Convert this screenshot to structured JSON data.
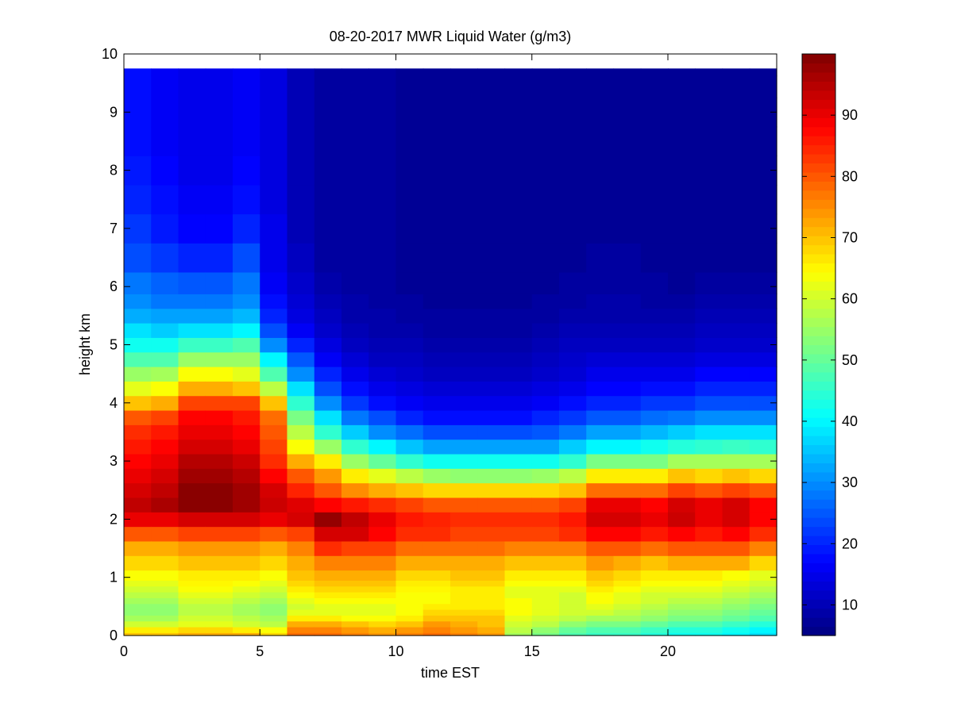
{
  "chart_data": {
    "type": "heatmap",
    "title": "08-20-2017 MWR Liquid Water (g/m3)",
    "xlabel": "time EST",
    "ylabel": "height km",
    "xlim": [
      0,
      24
    ],
    "ylim": [
      0,
      10
    ],
    "xticks": [
      0,
      5,
      10,
      15,
      20
    ],
    "yticks": [
      0,
      1,
      2,
      3,
      4,
      5,
      6,
      7,
      8,
      9,
      10
    ],
    "colorbar": {
      "colormap": "jet",
      "range": [
        5,
        100
      ],
      "ticks": [
        10,
        20,
        30,
        40,
        50,
        60,
        70,
        80,
        90
      ]
    },
    "time_step_hours": 1,
    "time_centers": [
      0,
      1,
      2,
      3,
      4,
      5,
      6,
      7,
      8,
      9,
      10,
      11,
      12,
      13,
      14,
      15,
      16,
      17,
      18,
      19,
      20,
      21,
      22,
      23
    ],
    "height_levels_km": [
      0,
      0.1,
      0.2,
      0.3,
      0.4,
      0.5,
      0.6,
      0.7,
      0.8,
      0.9,
      1.0,
      1.25,
      1.5,
      1.75,
      2.0,
      2.25,
      2.5,
      2.75,
      3.0,
      3.25,
      3.5,
      3.75,
      4.0,
      4.25,
      4.5,
      4.75,
      5.0,
      5.25,
      5.5,
      5.75,
      6.0,
      6.5,
      7.0,
      7.5,
      8.0,
      8.5,
      9.0,
      9.5,
      9.75
    ],
    "profiles": [
      [
        70,
        66,
        60,
        56,
        54,
        54,
        56,
        58,
        60,
        62,
        64,
        68,
        72,
        80,
        90,
        94,
        92,
        90,
        88,
        86,
        84,
        80,
        70,
        62,
        55,
        48,
        42,
        38,
        33,
        30,
        28,
        24,
        22,
        20,
        19,
        18,
        18,
        18,
        18
      ],
      [
        70,
        66,
        60,
        56,
        54,
        54,
        56,
        58,
        60,
        62,
        64,
        68,
        72,
        80,
        90,
        96,
        94,
        92,
        90,
        88,
        86,
        82,
        72,
        64,
        56,
        48,
        42,
        36,
        32,
        28,
        26,
        22,
        19,
        18,
        17,
        16,
        16,
        16,
        16
      ],
      [
        72,
        68,
        62,
        60,
        58,
        58,
        60,
        62,
        64,
        65,
        66,
        70,
        74,
        82,
        92,
        99,
        99,
        97,
        95,
        92,
        90,
        88,
        82,
        72,
        64,
        55,
        46,
        38,
        32,
        28,
        25,
        20,
        17,
        16,
        15,
        15,
        15,
        15,
        15
      ],
      [
        72,
        68,
        62,
        60,
        58,
        58,
        60,
        62,
        64,
        65,
        66,
        70,
        74,
        82,
        92,
        99,
        99,
        97,
        95,
        92,
        90,
        88,
        82,
        72,
        64,
        55,
        46,
        38,
        32,
        28,
        25,
        20,
        17,
        16,
        15,
        15,
        15,
        15,
        15
      ],
      [
        72,
        66,
        60,
        58,
        56,
        56,
        58,
        60,
        62,
        64,
        66,
        70,
        74,
        82,
        92,
        97,
        97,
        95,
        93,
        90,
        88,
        86,
        82,
        70,
        62,
        55,
        48,
        40,
        34,
        30,
        28,
        24,
        20,
        18,
        17,
        16,
        16,
        16,
        16
      ],
      [
        68,
        64,
        58,
        56,
        54,
        54,
        56,
        58,
        60,
        62,
        64,
        68,
        72,
        80,
        90,
        93,
        92,
        88,
        84,
        82,
        80,
        78,
        70,
        58,
        48,
        40,
        30,
        24,
        20,
        18,
        16,
        15,
        15,
        14,
        14,
        14,
        14,
        14,
        14
      ],
      [
        78,
        76,
        72,
        66,
        62,
        60,
        62,
        64,
        66,
        68,
        70,
        72,
        76,
        82,
        92,
        91,
        85,
        80,
        72,
        64,
        58,
        52,
        45,
        38,
        30,
        25,
        20,
        16,
        14,
        13,
        12,
        11,
        10,
        10,
        10,
        10,
        10,
        10,
        10
      ],
      [
        78,
        76,
        72,
        66,
        62,
        62,
        64,
        66,
        68,
        70,
        72,
        76,
        84,
        92,
        98,
        88,
        80,
        74,
        66,
        55,
        45,
        38,
        30,
        24,
        20,
        16,
        14,
        12,
        11,
        10,
        9,
        8,
        8,
        8,
        8,
        8,
        8,
        8,
        8
      ],
      [
        76,
        74,
        70,
        64,
        62,
        62,
        64,
        66,
        68,
        70,
        72,
        76,
        82,
        92,
        94,
        86,
        75,
        66,
        55,
        45,
        36,
        28,
        22,
        18,
        15,
        13,
        11,
        10,
        9,
        9,
        8,
        8,
        8,
        8,
        8,
        8,
        8,
        8,
        8
      ],
      [
        74,
        72,
        68,
        64,
        62,
        62,
        64,
        66,
        68,
        70,
        72,
        76,
        82,
        88,
        90,
        84,
        72,
        62,
        50,
        40,
        30,
        24,
        18,
        15,
        13,
        11,
        10,
        9,
        9,
        8,
        8,
        8,
        8,
        8,
        8,
        8,
        8,
        8,
        8
      ],
      [
        76,
        74,
        70,
        66,
        64,
        64,
        64,
        64,
        65,
        66,
        68,
        72,
        78,
        84,
        86,
        82,
        70,
        58,
        45,
        35,
        27,
        20,
        16,
        14,
        12,
        11,
        10,
        9,
        8,
        8,
        7,
        7,
        7,
        7,
        7,
        7,
        7,
        7,
        7
      ],
      [
        78,
        76,
        74,
        70,
        68,
        66,
        64,
        64,
        65,
        66,
        68,
        72,
        78,
        84,
        85,
        80,
        68,
        55,
        42,
        32,
        24,
        18,
        15,
        13,
        11,
        10,
        9,
        8,
        8,
        7,
        7,
        7,
        7,
        7,
        7,
        7,
        7,
        7,
        7
      ],
      [
        76,
        74,
        72,
        70,
        68,
        66,
        66,
        66,
        66,
        68,
        70,
        72,
        78,
        82,
        84,
        80,
        68,
        54,
        42,
        32,
        24,
        18,
        15,
        13,
        11,
        10,
        9,
        8,
        8,
        7,
        7,
        7,
        7,
        7,
        7,
        7,
        7,
        7,
        7
      ],
      [
        74,
        72,
        70,
        70,
        68,
        66,
        66,
        66,
        66,
        68,
        70,
        72,
        78,
        82,
        84,
        80,
        68,
        54,
        42,
        32,
        24,
        18,
        15,
        13,
        11,
        10,
        9,
        8,
        8,
        7,
        7,
        7,
        7,
        7,
        7,
        7,
        7,
        7,
        7
      ],
      [
        56,
        58,
        60,
        62,
        64,
        64,
        64,
        62,
        62,
        64,
        66,
        70,
        76,
        82,
        84,
        80,
        68,
        54,
        42,
        32,
        24,
        18,
        15,
        13,
        11,
        10,
        9,
        8,
        8,
        7,
        7,
        7,
        7,
        7,
        7,
        7,
        7,
        7,
        7
      ],
      [
        52,
        54,
        58,
        60,
        62,
        62,
        62,
        62,
        62,
        64,
        66,
        70,
        76,
        82,
        84,
        80,
        68,
        55,
        42,
        32,
        25,
        20,
        16,
        14,
        12,
        11,
        10,
        9,
        8,
        8,
        7,
        7,
        7,
        7,
        7,
        7,
        7,
        7,
        7
      ],
      [
        48,
        50,
        54,
        58,
        60,
        60,
        60,
        60,
        62,
        64,
        66,
        70,
        76,
        84,
        86,
        82,
        70,
        58,
        45,
        36,
        28,
        22,
        18,
        15,
        13,
        12,
        11,
        10,
        9,
        8,
        8,
        7,
        7,
        7,
        7,
        7,
        7,
        7,
        7
      ],
      [
        46,
        48,
        52,
        56,
        60,
        62,
        64,
        64,
        66,
        68,
        70,
        74,
        80,
        88,
        92,
        90,
        78,
        66,
        52,
        40,
        32,
        25,
        20,
        17,
        15,
        13,
        11,
        10,
        9,
        9,
        8,
        8,
        7,
        7,
        7,
        7,
        7,
        7,
        7
      ],
      [
        46,
        48,
        52,
        56,
        58,
        60,
        62,
        62,
        64,
        66,
        68,
        72,
        80,
        88,
        92,
        90,
        78,
        66,
        52,
        40,
        32,
        25,
        20,
        17,
        15,
        13,
        11,
        10,
        9,
        9,
        8,
        8,
        7,
        7,
        7,
        7,
        7,
        7,
        7
      ],
      [
        44,
        46,
        50,
        54,
        56,
        58,
        60,
        60,
        62,
        64,
        66,
        70,
        78,
        86,
        90,
        88,
        78,
        66,
        52,
        42,
        34,
        27,
        22,
        18,
        15,
        13,
        11,
        10,
        9,
        8,
        8,
        7,
        7,
        7,
        7,
        7,
        7,
        7,
        7
      ],
      [
        42,
        44,
        48,
        52,
        54,
        56,
        58,
        60,
        62,
        64,
        66,
        72,
        80,
        88,
        93,
        92,
        82,
        70,
        56,
        44,
        36,
        28,
        22,
        18,
        15,
        13,
        11,
        10,
        9,
        8,
        7,
        7,
        7,
        7,
        7,
        7,
        7,
        7,
        7
      ],
      [
        42,
        44,
        48,
        52,
        54,
        56,
        58,
        60,
        62,
        64,
        66,
        72,
        80,
        86,
        90,
        90,
        80,
        68,
        56,
        45,
        38,
        30,
        24,
        20,
        17,
        14,
        12,
        11,
        10,
        9,
        8,
        7,
        7,
        7,
        7,
        7,
        7,
        7,
        7
      ],
      [
        40,
        42,
        46,
        50,
        52,
        54,
        56,
        58,
        60,
        62,
        64,
        72,
        80,
        88,
        92,
        92,
        82,
        70,
        56,
        46,
        38,
        30,
        24,
        20,
        17,
        14,
        12,
        11,
        10,
        9,
        8,
        7,
        7,
        7,
        7,
        7,
        7,
        7,
        7
      ],
      [
        38,
        40,
        44,
        48,
        50,
        52,
        54,
        56,
        58,
        60,
        62,
        68,
        76,
        84,
        88,
        88,
        80,
        68,
        56,
        45,
        38,
        30,
        24,
        20,
        17,
        14,
        12,
        11,
        10,
        9,
        8,
        7,
        7,
        7,
        7,
        7,
        7,
        7,
        7
      ]
    ]
  }
}
